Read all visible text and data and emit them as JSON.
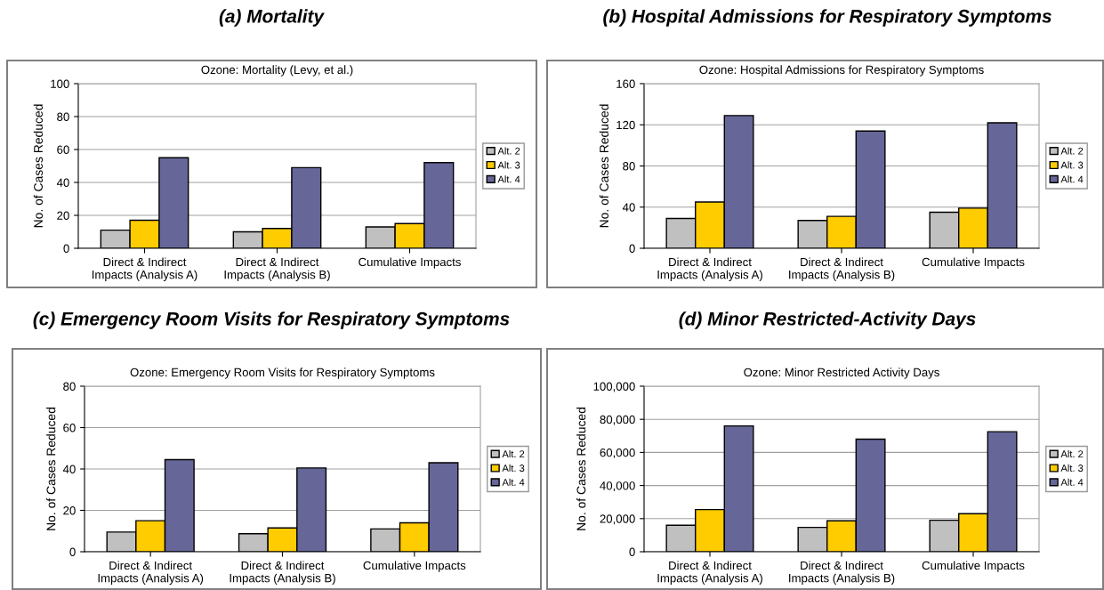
{
  "chart_data": [
    {
      "type": "bar",
      "title": "(a) Mortality",
      "subtitle": "Ozone: Mortality (Levy, et al.)",
      "ylabel": "No. of Cases Reduced",
      "categories": [
        "Direct & Indirect\nImpacts (Analysis A)",
        "Direct & Indirect\nImpacts (Analysis B)",
        "Cumulative Impacts"
      ],
      "series": [
        {
          "name": "Alt. 2",
          "color": "#c0c0c0",
          "values": [
            11,
            10,
            13
          ]
        },
        {
          "name": "Alt. 3",
          "color": "#ffcc00",
          "values": [
            17,
            12,
            15
          ]
        },
        {
          "name": "Alt. 4",
          "color": "#666699",
          "values": [
            55,
            49,
            52
          ]
        }
      ],
      "ylim": [
        0,
        100
      ],
      "yticks": [
        0,
        20,
        40,
        60,
        80,
        100
      ],
      "grid": "y",
      "legend": "right"
    },
    {
      "type": "bar",
      "title": "(b) Hospital Admissions for Respiratory Symptoms",
      "subtitle": "Ozone: Hospital Admissions for Respiratory Symptoms",
      "ylabel": "No. of Cases Reduced",
      "categories": [
        "Direct & Indirect\nImpacts (Analysis A)",
        "Direct & Indirect\nImpacts (Analysis B)",
        "Cumulative Impacts"
      ],
      "series": [
        {
          "name": "Alt. 2",
          "color": "#c0c0c0",
          "values": [
            29,
            27,
            35
          ]
        },
        {
          "name": "Alt. 3",
          "color": "#ffcc00",
          "values": [
            45,
            31,
            39
          ]
        },
        {
          "name": "Alt. 4",
          "color": "#666699",
          "values": [
            129,
            114,
            122
          ]
        }
      ],
      "ylim": [
        0,
        160
      ],
      "yticks": [
        0,
        40,
        80,
        120,
        160
      ],
      "grid": "y",
      "legend": "right"
    },
    {
      "type": "bar",
      "title": "(c) Emergency Room Visits for Respiratory Symptoms",
      "subtitle": "Ozone: Emergency Room Visits for Respiratory Symptoms",
      "ylabel": "No. of Cases Reduced",
      "categories": [
        "Direct & Indirect\nImpacts (Analysis A)",
        "Direct & Indirect\nImpacts (Analysis B)",
        "Cumulative Impacts"
      ],
      "series": [
        {
          "name": "Alt. 2",
          "color": "#c0c0c0",
          "values": [
            9.5,
            8.7,
            11
          ]
        },
        {
          "name": "Alt. 3",
          "color": "#ffcc00",
          "values": [
            15,
            11.5,
            14
          ]
        },
        {
          "name": "Alt. 4",
          "color": "#666699",
          "values": [
            44.5,
            40.5,
            43
          ]
        }
      ],
      "ylim": [
        0,
        80
      ],
      "yticks": [
        0,
        20,
        40,
        60,
        80
      ],
      "grid": "y",
      "legend": "right"
    },
    {
      "type": "bar",
      "title": "(d) Minor Restricted-Activity Days",
      "subtitle": "Ozone: Minor Restricted Activity Days",
      "ylabel": "No. of Cases Reduced",
      "categories": [
        "Direct & Indirect\nImpacts (Analysis A)",
        "Direct & Indirect\nImpacts (Analysis B)",
        "Cumulative Impacts"
      ],
      "series": [
        {
          "name": "Alt. 2",
          "color": "#c0c0c0",
          "values": [
            16000,
            14700,
            19000
          ]
        },
        {
          "name": "Alt. 3",
          "color": "#ffcc00",
          "values": [
            25500,
            18700,
            23000
          ]
        },
        {
          "name": "Alt. 4",
          "color": "#666699",
          "values": [
            76000,
            68000,
            72500
          ]
        }
      ],
      "ylim": [
        0,
        100000
      ],
      "yticks": [
        0,
        {
          "value": 20000,
          "label": "20,000"
        },
        {
          "value": 40000,
          "label": "40,000"
        },
        {
          "value": 60000,
          "label": "60,000"
        },
        {
          "value": 80000,
          "label": "80,000"
        },
        {
          "value": 100000,
          "label": "100,000"
        }
      ],
      "grid": "y",
      "legend": "right"
    }
  ]
}
